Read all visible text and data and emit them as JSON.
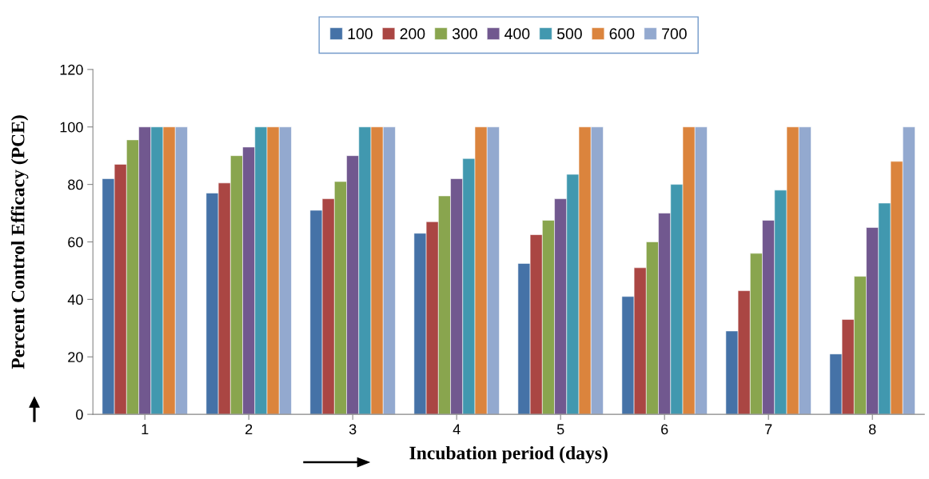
{
  "chart_data": {
    "type": "bar",
    "xlabel": "Incubation period (days)",
    "ylabel": "Percent Control Efficacy (PCE)",
    "categories": [
      "1",
      "2",
      "3",
      "4",
      "5",
      "6",
      "7",
      "8"
    ],
    "series": [
      {
        "name": "100",
        "color": "#4572a7",
        "values": [
          82,
          77,
          71,
          63,
          52.5,
          41,
          29,
          21
        ]
      },
      {
        "name": "200",
        "color": "#aa4643",
        "values": [
          87,
          80.5,
          75,
          67,
          62.5,
          51,
          43,
          33
        ]
      },
      {
        "name": "300",
        "color": "#89a54e",
        "values": [
          95.5,
          90,
          81,
          76,
          67.5,
          60,
          56,
          48
        ]
      },
      {
        "name": "400",
        "color": "#71588f",
        "values": [
          100,
          93,
          90,
          82,
          75,
          70,
          67.5,
          65
        ]
      },
      {
        "name": "500",
        "color": "#4198af",
        "values": [
          100,
          100,
          100,
          89,
          83.5,
          80,
          78,
          73.5
        ]
      },
      {
        "name": "600",
        "color": "#db843d",
        "values": [
          100,
          100,
          100,
          100,
          100,
          100,
          100,
          88
        ]
      },
      {
        "name": "700",
        "color": "#93a9cf",
        "values": [
          100,
          100,
          100,
          100,
          100,
          100,
          100,
          100
        ]
      }
    ],
    "ylim": [
      0,
      120
    ],
    "yticks": [
      0,
      20,
      40,
      60,
      80,
      100,
      120
    ],
    "grid": false,
    "legend": "top"
  }
}
